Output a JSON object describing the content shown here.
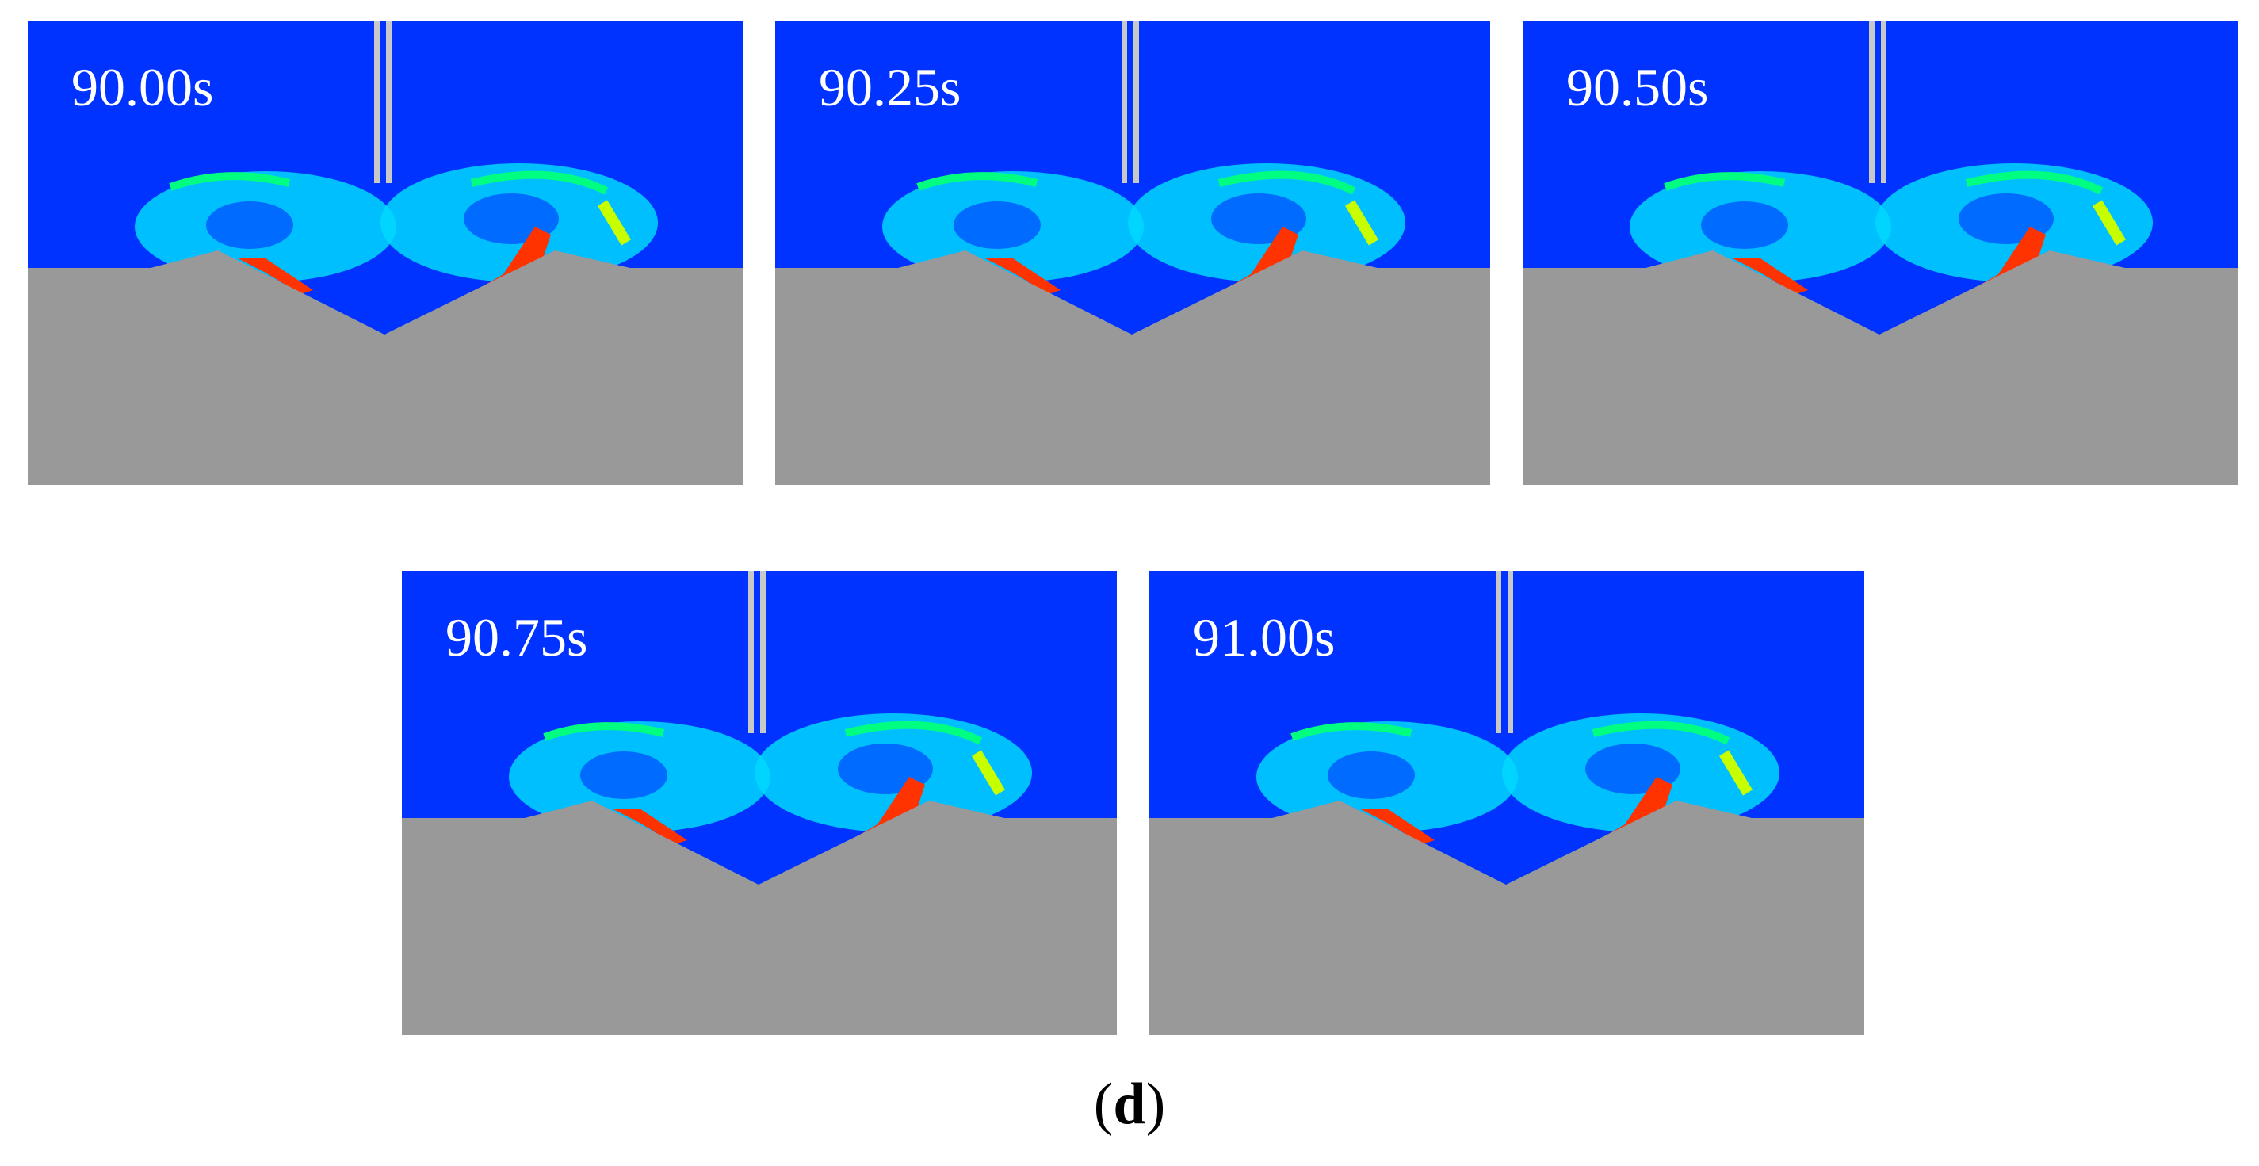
{
  "colors": {
    "fluid_background": "#0033ff",
    "ground": "#999999",
    "nozzle": "#c8c8c8",
    "colormap": [
      "#00d8ff",
      "#00ff80",
      "#c8ff00",
      "#ff3300"
    ]
  },
  "frames": [
    {
      "label": "90.00s"
    },
    {
      "label": "90.25s"
    },
    {
      "label": "90.50s"
    },
    {
      "label": "90.75s"
    },
    {
      "label": "91.00s"
    }
  ],
  "caption": {
    "open": "(",
    "letter": "d",
    "close": ")"
  }
}
